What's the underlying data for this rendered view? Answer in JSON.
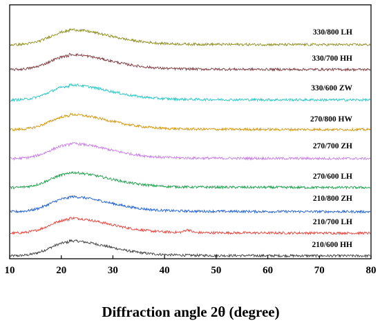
{
  "chart_data": {
    "type": "line",
    "title": "",
    "xlabel": "Diffraction angle 2θ  (degree)",
    "ylabel": "",
    "xlim": [
      10,
      80
    ],
    "x_ticks": [
      10,
      20,
      30,
      40,
      50,
      60,
      70,
      80
    ],
    "y_ticks_shown": false,
    "grid": false,
    "legend": "labels beside each curve, right side",
    "peak_position_2theta": 21.5,
    "series": [
      {
        "name": "210/600  HH",
        "color": "#3d3d3d",
        "peak_2theta": 21.5,
        "minor_peak_2theta": null
      },
      {
        "name": "210/700  LH",
        "color": "#e8423a",
        "peak_2theta": 21.5,
        "minor_peak_2theta": 44.5
      },
      {
        "name": "210/800  ZH",
        "color": "#1f5fd6",
        "peak_2theta": 21.5,
        "minor_peak_2theta": null
      },
      {
        "name": "270/600  LH",
        "color": "#1aa04a",
        "peak_2theta": 21.5,
        "minor_peak_2theta": null
      },
      {
        "name": "270/700  ZH",
        "color": "#c77ee6",
        "peak_2theta": 21.5,
        "minor_peak_2theta": null
      },
      {
        "name": "270/800  HW",
        "color": "#d4960a",
        "peak_2theta": 21.5,
        "minor_peak_2theta": null
      },
      {
        "name": "330/600  ZW",
        "color": "#27c7c4",
        "peak_2theta": 21.5,
        "minor_peak_2theta": null
      },
      {
        "name": "330/700  HH",
        "color": "#7e3a3f",
        "peak_2theta": 21.5,
        "minor_peak_2theta": null
      },
      {
        "name": "330/800  LH",
        "color": "#8f8f22",
        "peak_2theta": 21.5,
        "minor_peak_2theta": null
      }
    ]
  }
}
